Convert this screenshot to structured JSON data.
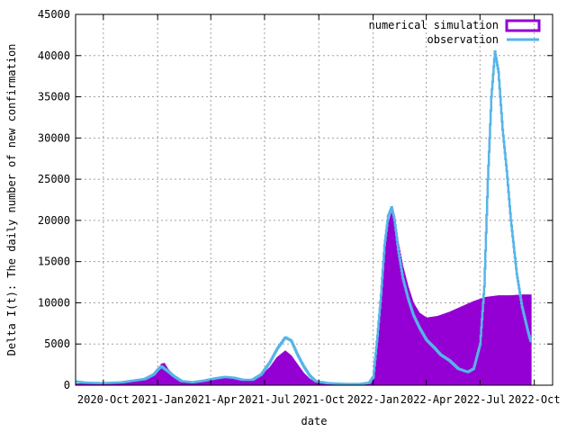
{
  "chart_data": {
    "type": "bar",
    "title": "",
    "xlabel": "date",
    "ylabel": "Delta I(t): The daily number of new confirmation",
    "x_start": "2020-08-15",
    "x_end": "2022-11-01",
    "ylim": [
      0,
      45000
    ],
    "yticks": [
      0,
      5000,
      10000,
      15000,
      20000,
      25000,
      30000,
      35000,
      40000,
      45000
    ],
    "xticks": [
      {
        "label": "2020-Oct",
        "date": "2020-10-01"
      },
      {
        "label": "2021-Jan",
        "date": "2021-01-01"
      },
      {
        "label": "2021-Apr",
        "date": "2021-04-01"
      },
      {
        "label": "2021-Jul",
        "date": "2021-07-01"
      },
      {
        "label": "2021-Oct",
        "date": "2021-10-01"
      },
      {
        "label": "2022-Jan",
        "date": "2022-01-01"
      },
      {
        "label": "2022-Apr",
        "date": "2022-04-01"
      },
      {
        "label": "2022-Jul",
        "date": "2022-07-01"
      },
      {
        "label": "2022-Oct",
        "date": "2022-10-01"
      }
    ],
    "grid": true,
    "legend_position": "top-right",
    "series": [
      {
        "name": "numerical simulation",
        "style": "boxes",
        "color": "#9400d3",
        "points": [
          [
            "2020-08-15",
            200
          ],
          [
            "2020-09-01",
            200
          ],
          [
            "2020-10-01",
            200
          ],
          [
            "2020-11-01",
            300
          ],
          [
            "2020-11-20",
            500
          ],
          [
            "2020-12-10",
            700
          ],
          [
            "2020-12-25",
            1200
          ],
          [
            "2021-01-01",
            1800
          ],
          [
            "2021-01-07",
            2600
          ],
          [
            "2021-01-12",
            2700
          ],
          [
            "2021-01-18",
            2000
          ],
          [
            "2021-01-28",
            1200
          ],
          [
            "2021-02-10",
            600
          ],
          [
            "2021-03-01",
            400
          ],
          [
            "2021-03-20",
            600
          ],
          [
            "2021-04-10",
            900
          ],
          [
            "2021-04-25",
            1100
          ],
          [
            "2021-05-10",
            1000
          ],
          [
            "2021-05-25",
            700
          ],
          [
            "2021-06-10",
            700
          ],
          [
            "2021-06-25",
            1200
          ],
          [
            "2021-07-10",
            2200
          ],
          [
            "2021-07-22",
            3400
          ],
          [
            "2021-08-05",
            4200
          ],
          [
            "2021-08-15",
            3600
          ],
          [
            "2021-08-25",
            2600
          ],
          [
            "2021-09-05",
            1500
          ],
          [
            "2021-09-15",
            800
          ],
          [
            "2021-09-25",
            350
          ],
          [
            "2021-10-15",
            200
          ],
          [
            "2021-11-15",
            150
          ],
          [
            "2021-12-10",
            150
          ],
          [
            "2021-12-25",
            200
          ],
          [
            "2022-01-01",
            800
          ],
          [
            "2022-01-08",
            4500
          ],
          [
            "2022-01-14",
            10000
          ],
          [
            "2022-01-20",
            16000
          ],
          [
            "2022-01-26",
            19500
          ],
          [
            "2022-02-01",
            21000
          ],
          [
            "2022-02-06",
            20500
          ],
          [
            "2022-02-12",
            17500
          ],
          [
            "2022-02-20",
            14500
          ],
          [
            "2022-03-01",
            12000
          ],
          [
            "2022-03-10",
            10000
          ],
          [
            "2022-03-20",
            8800
          ],
          [
            "2022-04-01",
            8200
          ],
          [
            "2022-04-20",
            8400
          ],
          [
            "2022-05-10",
            8900
          ],
          [
            "2022-06-01",
            9600
          ],
          [
            "2022-06-20",
            10200
          ],
          [
            "2022-07-10",
            10700
          ],
          [
            "2022-08-01",
            10900
          ],
          [
            "2022-08-20",
            10900
          ],
          [
            "2022-09-10",
            11000
          ],
          [
            "2022-09-25",
            11000
          ]
        ]
      },
      {
        "name": "observation",
        "style": "steps",
        "color": "#56b4e9",
        "points": [
          [
            "2020-08-15",
            450
          ],
          [
            "2020-09-01",
            300
          ],
          [
            "2020-10-01",
            250
          ],
          [
            "2020-11-01",
            350
          ],
          [
            "2020-11-20",
            550
          ],
          [
            "2020-12-10",
            750
          ],
          [
            "2020-12-25",
            1300
          ],
          [
            "2021-01-01",
            1900
          ],
          [
            "2021-01-07",
            2300
          ],
          [
            "2021-01-12",
            2000
          ],
          [
            "2021-01-18",
            1700
          ],
          [
            "2021-01-28",
            1100
          ],
          [
            "2021-02-10",
            500
          ],
          [
            "2021-03-01",
            350
          ],
          [
            "2021-03-20",
            550
          ],
          [
            "2021-04-10",
            850
          ],
          [
            "2021-04-25",
            1000
          ],
          [
            "2021-05-10",
            900
          ],
          [
            "2021-05-25",
            650
          ],
          [
            "2021-06-10",
            650
          ],
          [
            "2021-06-25",
            1300
          ],
          [
            "2021-07-10",
            2800
          ],
          [
            "2021-07-22",
            4400
          ],
          [
            "2021-08-05",
            5800
          ],
          [
            "2021-08-15",
            5400
          ],
          [
            "2021-08-25",
            3800
          ],
          [
            "2021-09-05",
            2300
          ],
          [
            "2021-09-15",
            1200
          ],
          [
            "2021-09-25",
            500
          ],
          [
            "2021-10-15",
            250
          ],
          [
            "2021-11-15",
            150
          ],
          [
            "2021-12-10",
            150
          ],
          [
            "2021-12-25",
            300
          ],
          [
            "2022-01-01",
            1000
          ],
          [
            "2022-01-08",
            6000
          ],
          [
            "2022-01-14",
            11000
          ],
          [
            "2022-01-20",
            17000
          ],
          [
            "2022-01-26",
            20500
          ],
          [
            "2022-02-01",
            21600
          ],
          [
            "2022-02-06",
            20000
          ],
          [
            "2022-02-12",
            16500
          ],
          [
            "2022-02-20",
            13000
          ],
          [
            "2022-03-01",
            10500
          ],
          [
            "2022-03-10",
            8500
          ],
          [
            "2022-03-20",
            7000
          ],
          [
            "2022-04-01",
            5500
          ],
          [
            "2022-04-15",
            4500
          ],
          [
            "2022-04-25",
            3700
          ],
          [
            "2022-05-10",
            3000
          ],
          [
            "2022-05-25",
            2000
          ],
          [
            "2022-06-10",
            1600
          ],
          [
            "2022-06-20",
            2000
          ],
          [
            "2022-07-01",
            5000
          ],
          [
            "2022-07-08",
            12000
          ],
          [
            "2022-07-14",
            25000
          ],
          [
            "2022-07-20",
            35000
          ],
          [
            "2022-07-26",
            40500
          ],
          [
            "2022-08-01",
            38000
          ],
          [
            "2022-08-08",
            31000
          ],
          [
            "2022-08-15",
            26000
          ],
          [
            "2022-08-22",
            20000
          ],
          [
            "2022-09-01",
            13500
          ],
          [
            "2022-09-10",
            9500
          ],
          [
            "2022-09-20",
            6500
          ],
          [
            "2022-09-25",
            5200
          ]
        ]
      }
    ]
  }
}
